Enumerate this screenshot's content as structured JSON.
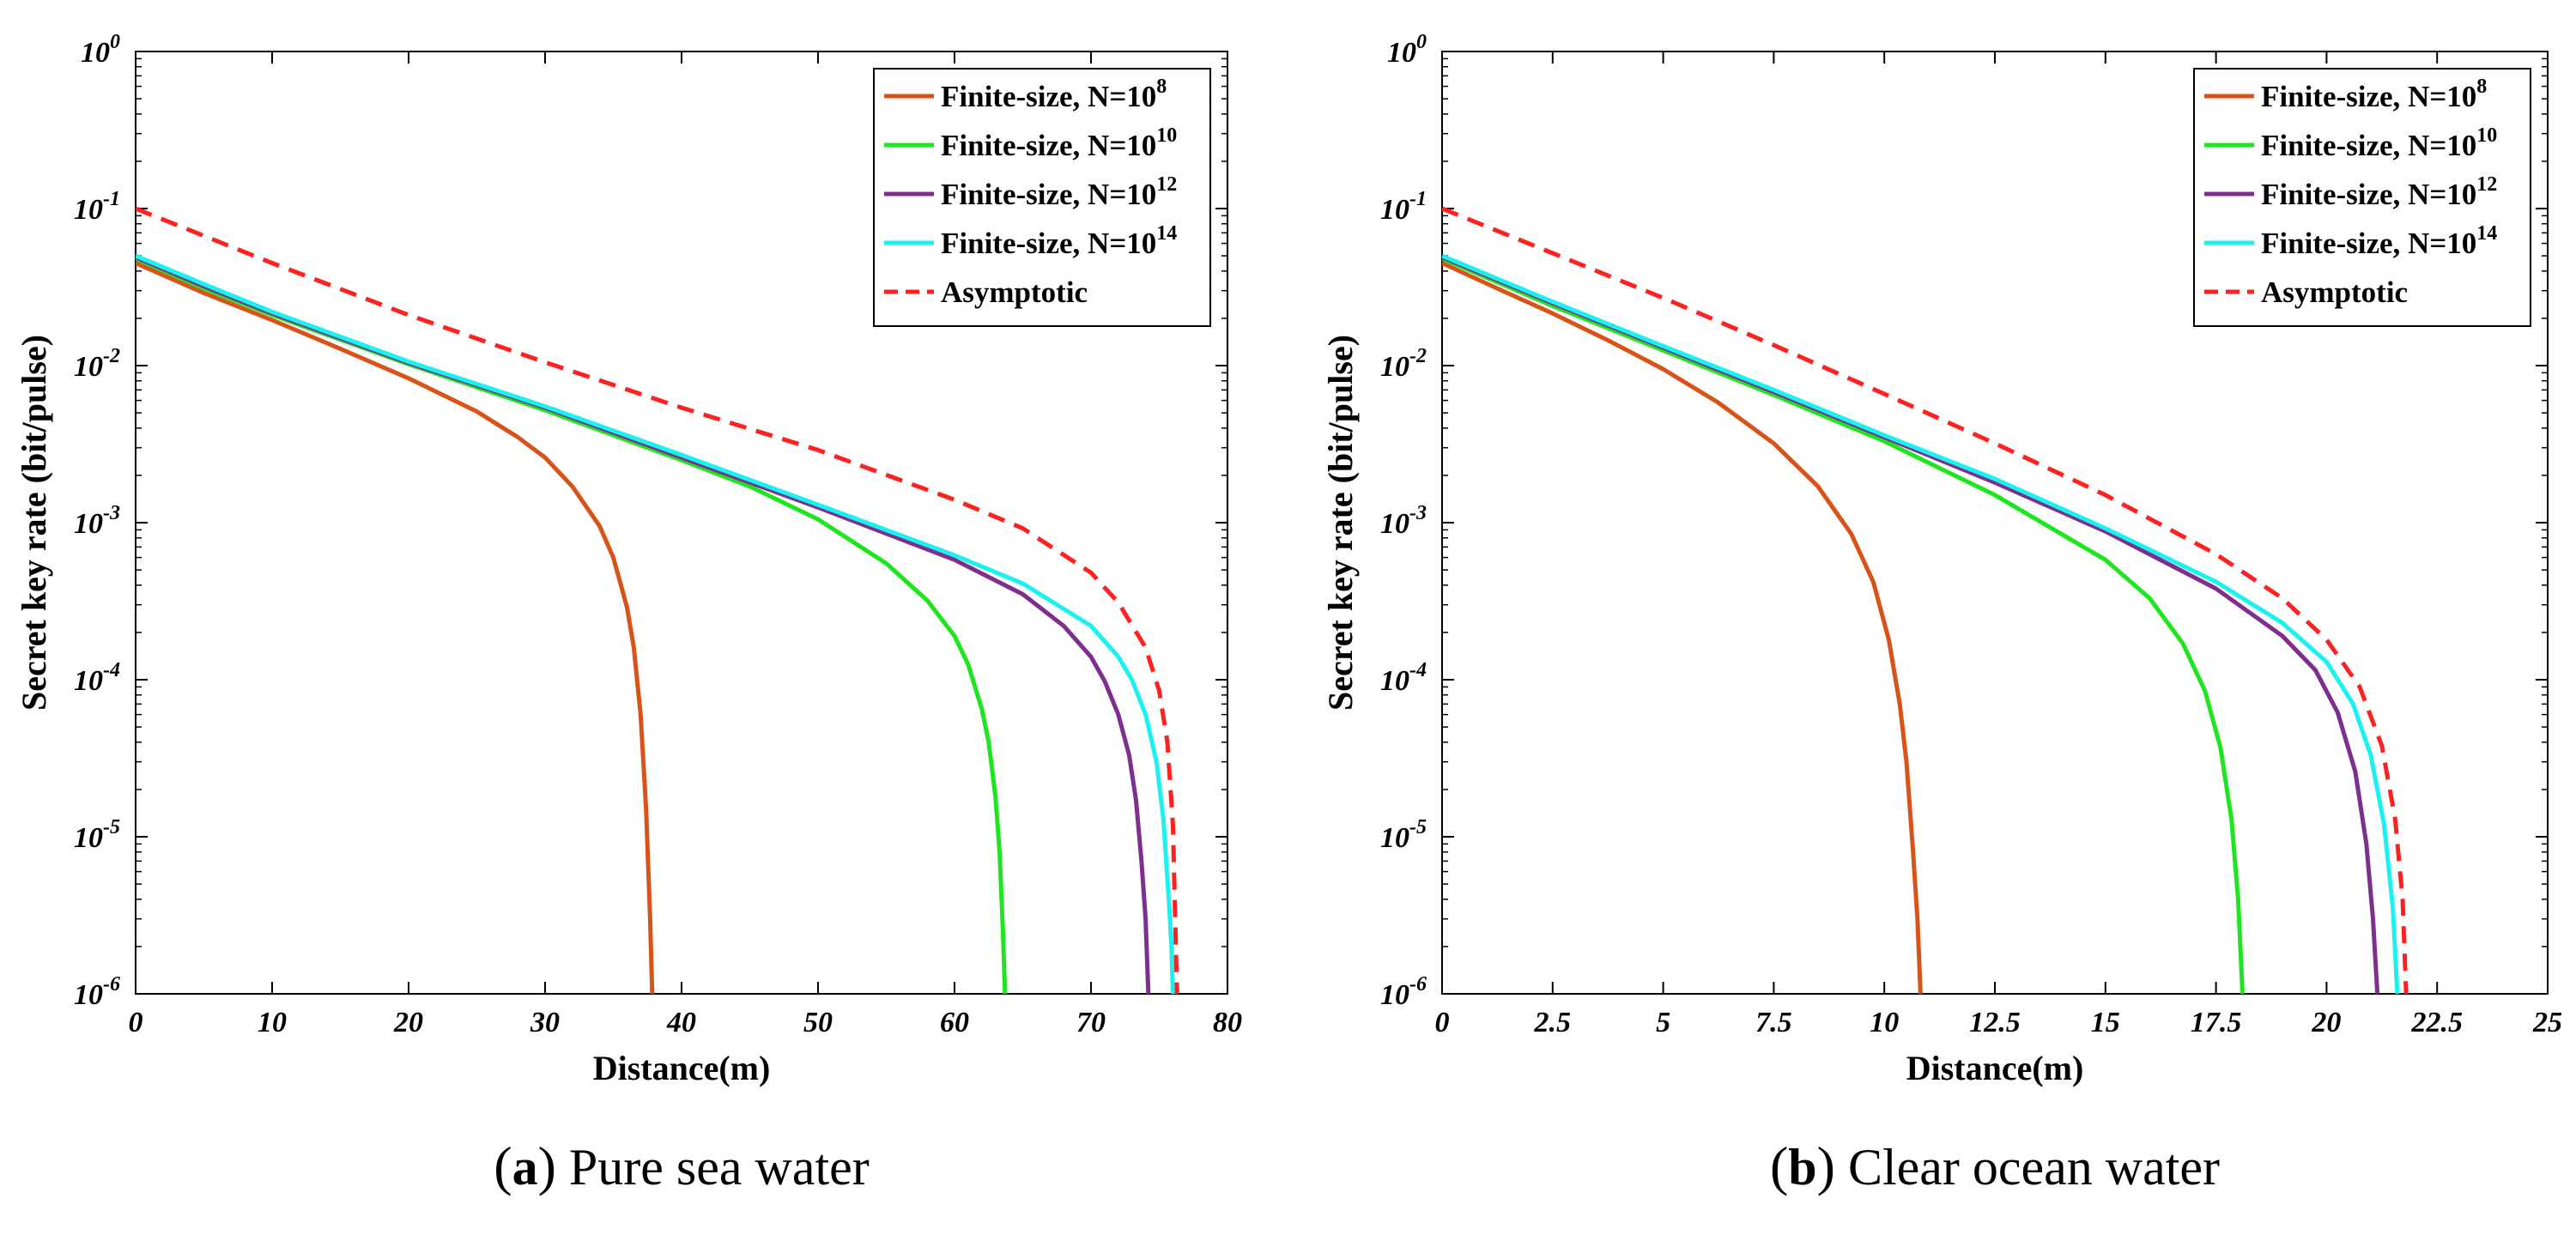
{
  "chart_data": [
    {
      "type": "line",
      "panel_letter": "a",
      "caption": "Pure sea water",
      "xlabel": "Distance(m)",
      "ylabel": "Secret key rate (bit/pulse)",
      "xlim": [
        0,
        80
      ],
      "ylim": [
        1e-06,
        1
      ],
      "yscale": "log",
      "x_ticks": [
        "0",
        "10",
        "20",
        "30",
        "40",
        "50",
        "60",
        "70",
        "80"
      ],
      "y_tick_exponents": [
        "-6",
        "-5",
        "-4",
        "-3",
        "-2",
        "-1",
        "0"
      ],
      "legend_position": "top-right",
      "series": [
        {
          "name": "Finite-size, N=10",
          "sup": "8",
          "color": "#D95319",
          "dash": "solid",
          "x": [
            0,
            5,
            10,
            15,
            20,
            25,
            28,
            30,
            32,
            34,
            35,
            36,
            36.5,
            37,
            37.4,
            37.7,
            37.85
          ],
          "y": [
            0.045,
            0.029,
            0.0195,
            0.0128,
            0.0083,
            0.0051,
            0.0035,
            0.0026,
            0.0017,
            0.00095,
            0.0006,
            0.00029,
            0.00016,
            6e-05,
            1.5e-05,
            3e-06,
            1e-06
          ]
        },
        {
          "name": "Finite-size, N=10",
          "sup": "10",
          "color": "#1EE61E",
          "dash": "solid",
          "x": [
            0,
            5,
            10,
            20,
            30,
            40,
            45,
            50,
            55,
            58,
            60,
            61,
            62,
            62.5,
            63,
            63.3,
            63.55,
            63.7
          ],
          "y": [
            0.048,
            0.031,
            0.021,
            0.0102,
            0.0052,
            0.0025,
            0.0017,
            0.00105,
            0.00055,
            0.00032,
            0.00019,
            0.000125,
            6.5e-05,
            4e-05,
            1.8e-05,
            8e-06,
            2.5e-06,
            1e-06
          ]
        },
        {
          "name": "Finite-size, N=10",
          "sup": "12",
          "color": "#7E2F8E",
          "dash": "solid",
          "x": [
            0,
            5,
            10,
            20,
            30,
            40,
            50,
            60,
            65,
            68,
            70,
            71,
            72,
            72.8,
            73.3,
            73.7,
            74,
            74.2
          ],
          "y": [
            0.049,
            0.032,
            0.0215,
            0.0104,
            0.0054,
            0.0026,
            0.00125,
            0.00058,
            0.00035,
            0.00022,
            0.00014,
            9.8e-05,
            6e-05,
            3.3e-05,
            1.7e-05,
            7e-06,
            3e-06,
            1e-06
          ]
        },
        {
          "name": "Finite-size, N=10",
          "sup": "14",
          "color": "#1AF2F2",
          "dash": "solid",
          "x": [
            0,
            5,
            10,
            20,
            30,
            40,
            50,
            60,
            65,
            70,
            72,
            73,
            74,
            74.8,
            75.3,
            75.7,
            75.9,
            76
          ],
          "y": [
            0.05,
            0.033,
            0.022,
            0.0106,
            0.0055,
            0.0027,
            0.0013,
            0.00062,
            0.00041,
            0.00022,
            0.00014,
            0.0001,
            6e-05,
            3e-05,
            1.3e-05,
            4e-06,
            2e-06,
            1e-06
          ]
        },
        {
          "name": "Asymptotic",
          "sup": "",
          "color": "#FF2020",
          "dash": "dashed",
          "x": [
            0,
            10,
            20,
            30,
            40,
            50,
            60,
            65,
            70,
            72,
            74,
            75,
            75.6,
            76,
            76.3
          ],
          "y": [
            0.1,
            0.045,
            0.021,
            0.0105,
            0.0054,
            0.0029,
            0.0014,
            0.00092,
            0.00048,
            0.00031,
            0.00016,
            8.5e-05,
            4e-05,
            1.2e-05,
            1e-06
          ]
        }
      ]
    },
    {
      "type": "line",
      "panel_letter": "b",
      "caption": "Clear ocean water",
      "xlabel": "Distance(m)",
      "ylabel": "Secret key rate (bit/pulse)",
      "xlim": [
        0,
        25
      ],
      "ylim": [
        1e-06,
        1
      ],
      "yscale": "log",
      "x_ticks": [
        "0",
        "2.5",
        "5",
        "7.5",
        "10",
        "12.5",
        "15",
        "17.5",
        "20",
        "22.5",
        "25"
      ],
      "y_tick_exponents": [
        "-6",
        "-5",
        "-4",
        "-3",
        "-2",
        "-1",
        "0"
      ],
      "legend_position": "top-right",
      "series": [
        {
          "name": "Finite-size, N=10",
          "sup": "8",
          "color": "#D95319",
          "dash": "solid",
          "x": [
            0,
            1.25,
            2.5,
            3.75,
            5,
            6.25,
            7.5,
            8.5,
            9.25,
            9.75,
            10.1,
            10.35,
            10.5,
            10.65,
            10.75,
            10.82
          ],
          "y": [
            0.045,
            0.031,
            0.0215,
            0.0145,
            0.0095,
            0.0058,
            0.0032,
            0.0017,
            0.00085,
            0.00042,
            0.00018,
            7e-05,
            3e-05,
            8e-06,
            3e-06,
            1e-06
          ]
        },
        {
          "name": "Finite-size, N=10",
          "sup": "10",
          "color": "#1EE61E",
          "dash": "solid",
          "x": [
            0,
            2.5,
            5,
            7.5,
            10,
            12.5,
            15,
            16,
            16.75,
            17.25,
            17.6,
            17.85,
            18,
            18.1
          ],
          "y": [
            0.048,
            0.024,
            0.0125,
            0.0065,
            0.0033,
            0.0015,
            0.00058,
            0.00033,
            0.00017,
            8.5e-05,
            3.7e-05,
            1.3e-05,
            4e-06,
            1e-06
          ]
        },
        {
          "name": "Finite-size, N=10",
          "sup": "12",
          "color": "#7E2F8E",
          "dash": "solid",
          "x": [
            0,
            2.5,
            5,
            7.5,
            10,
            12.5,
            15,
            17.5,
            19,
            19.75,
            20.25,
            20.65,
            20.9,
            21.05,
            21.15
          ],
          "y": [
            0.049,
            0.025,
            0.013,
            0.0068,
            0.0035,
            0.0018,
            0.00088,
            0.00038,
            0.00019,
            0.000115,
            6.2e-05,
            2.6e-05,
            9e-06,
            3e-06,
            1e-06
          ]
        },
        {
          "name": "Finite-size, N=10",
          "sup": "14",
          "color": "#1AF2F2",
          "dash": "solid",
          "x": [
            0,
            2.5,
            5,
            7.5,
            10,
            12.5,
            15,
            17.5,
            19,
            20,
            20.6,
            21,
            21.3,
            21.5,
            21.6
          ],
          "y": [
            0.05,
            0.0255,
            0.0133,
            0.007,
            0.0036,
            0.0019,
            0.00092,
            0.00042,
            0.00023,
            0.00013,
            7e-05,
            3.3e-05,
            1.2e-05,
            3.5e-06,
            1e-06
          ]
        },
        {
          "name": "Asymptotic",
          "sup": "",
          "color": "#FF2020",
          "dash": "dashed",
          "x": [
            0,
            2.5,
            5,
            7.5,
            10,
            12.5,
            15,
            17.5,
            19,
            20,
            20.75,
            21.25,
            21.55,
            21.72,
            21.8
          ],
          "y": [
            0.1,
            0.052,
            0.027,
            0.0135,
            0.0066,
            0.0032,
            0.0015,
            0.00063,
            0.00033,
            0.00018,
            9e-05,
            3.8e-05,
            1.3e-05,
            4e-06,
            1e-06
          ]
        }
      ]
    }
  ]
}
